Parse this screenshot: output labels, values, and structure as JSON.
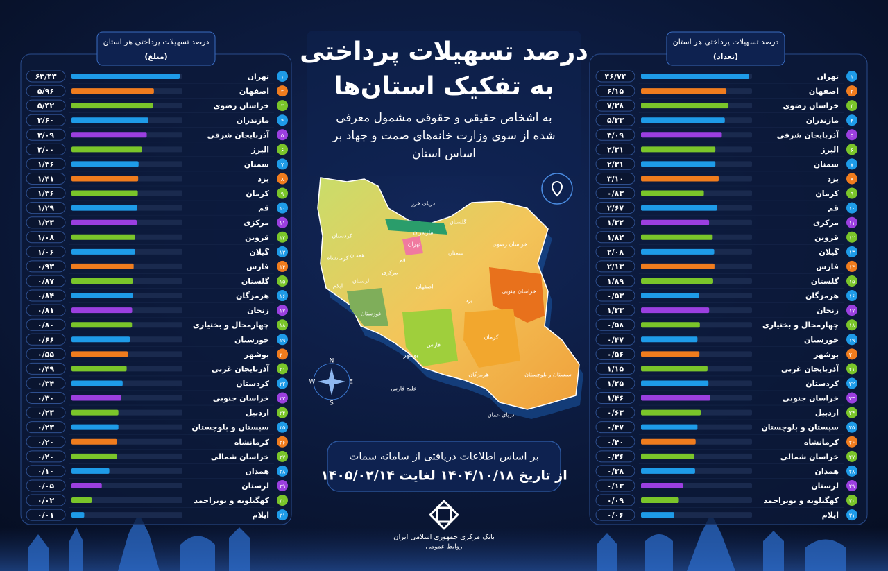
{
  "header": {
    "title_lines": [
      "درصد تسهیلات پرداختی",
      "به تفکیک استان‌ها"
    ],
    "subtitle_lines": [
      "به اشخاص حقیقی و حقوقی مشمول معرفی",
      "شده از سوی وزارت خانه‌های صمت و جهاد بر",
      "اساس استان"
    ]
  },
  "source": {
    "lines": [
      "بر اساس اطلاعات دریافتی از سامانه سمات",
      "از تاریخ ۱۴۰۴/۱۰/۱۸ لغایت ۱۴۰۵/۰۲/۱۴"
    ]
  },
  "logo": {
    "lines": [
      "بانک مرکزی جمهوری اسلامی ایران",
      "روابط عمومی"
    ]
  },
  "map": {
    "labels": [
      "دریای خزر",
      "خلیج فارس",
      "دریای عمان",
      "تهران",
      "اصفهان",
      "یزد",
      "کرمان",
      "فارس",
      "خوزستان",
      "سمنان",
      "خراسان رضوی",
      "خراسان جنوبی",
      "سیستان و بلوچستان",
      "هرمزگان",
      "گلستان",
      "مازندران",
      "لرستان",
      "همدان",
      "کردستان",
      "کرمانشاه",
      "ایلام",
      "قم",
      "مرکزی",
      "بوشهر"
    ],
    "compass": [
      "N",
      "S",
      "E",
      "W"
    ]
  },
  "chart_data": [
    {
      "type": "bar",
      "orientation": "horizontal",
      "title": "درصد تسهیلات پرداختی هر استان",
      "subtitle": "(مبلغ)",
      "categories": [
        "تهران",
        "اصفهان",
        "خراسان رضوی",
        "مازندران",
        "آذربایجان شرقی",
        "البرز",
        "سمنان",
        "یزد",
        "کرمان",
        "قم",
        "مرکزی",
        "قزوین",
        "گیلان",
        "فارس",
        "گلستان",
        "هرمزگان",
        "زنجان",
        "چهارمحال و بختیاری",
        "خوزستان",
        "بوشهر",
        "آذربایجان غربی",
        "کردستان",
        "خراسان جنوبی",
        "اردبیل",
        "سیستان و بلوچستان",
        "کرمانشاه",
        "خراسان شمالی",
        "همدان",
        "لرستان",
        "کهگیلویه و بویراحمد",
        "ایلام"
      ],
      "ranks": [
        "۱",
        "۲",
        "۳",
        "۴",
        "۵",
        "۶",
        "۷",
        "۸",
        "۹",
        "۱۰",
        "۱۱",
        "۱۲",
        "۱۳",
        "۱۴",
        "۱۵",
        "۱۶",
        "۱۷",
        "۱۸",
        "۱۹",
        "۲۰",
        "۲۱",
        "۲۲",
        "۲۳",
        "۲۴",
        "۲۵",
        "۲۶",
        "۲۷",
        "۲۸",
        "۲۹",
        "۳۰",
        "۳۱"
      ],
      "values": [
        63.43,
        5.96,
        5.42,
        3.6,
        3.09,
        2.0,
        1.46,
        1.41,
        1.36,
        1.29,
        1.23,
        1.08,
        1.06,
        0.93,
        0.87,
        0.84,
        0.81,
        0.8,
        0.66,
        0.55,
        0.49,
        0.34,
        0.3,
        0.23,
        0.23,
        0.2,
        0.2,
        0.1,
        0.05,
        0.02,
        0.01
      ],
      "value_labels": [
        "۶۳/۴۳",
        "۵/۹۶",
        "۵/۴۲",
        "۳/۶۰",
        "۳/۰۹",
        "۲/۰۰",
        "۱/۴۶",
        "۱/۴۱",
        "۱/۳۶",
        "۱/۲۹",
        "۱/۲۳",
        "۱/۰۸",
        "۱/۰۶",
        "۰/۹۳",
        "۰/۸۷",
        "۰/۸۴",
        "۰/۸۱",
        "۰/۸۰",
        "۰/۶۶",
        "۰/۵۵",
        "۰/۴۹",
        "۰/۳۴",
        "۰/۳۰",
        "۰/۲۳",
        "۰/۲۳",
        "۰/۲۰",
        "۰/۲۰",
        "۰/۱۰",
        "۰/۰۵",
        "۰/۰۲",
        "۰/۰۱"
      ],
      "colors": [
        "#1e9be8",
        "#f07c1e",
        "#7ac52a",
        "#1e9be8",
        "#9b3fe0",
        "#7ac52a",
        "#1e9be8",
        "#f07c1e",
        "#7ac52a",
        "#1e9be8",
        "#9b3fe0",
        "#7ac52a",
        "#1e9be8",
        "#f07c1e",
        "#7ac52a",
        "#1e9be8",
        "#9b3fe0",
        "#7ac52a",
        "#1e9be8",
        "#f07c1e",
        "#7ac52a",
        "#1e9be8",
        "#9b3fe0",
        "#7ac52a",
        "#1e9be8",
        "#f07c1e",
        "#7ac52a",
        "#1e9be8",
        "#9b3fe0",
        "#7ac52a",
        "#1e9be8"
      ]
    },
    {
      "type": "bar",
      "orientation": "horizontal",
      "title": "درصد تسهیلات پرداختی هر استان",
      "subtitle": "(تعداد)",
      "categories": [
        "تهران",
        "اصفهان",
        "خراسان رضوی",
        "مازندران",
        "آذربایجان شرقی",
        "البرز",
        "سمنان",
        "یزد",
        "کرمان",
        "قم",
        "مرکزی",
        "قزوین",
        "گیلان",
        "فارس",
        "گلستان",
        "هرمزگان",
        "زنجان",
        "چهارمحال و بختیاری",
        "خوزستان",
        "بوشهر",
        "آذربایجان غربی",
        "کردستان",
        "خراسان جنوبی",
        "اردبیل",
        "سیستان و بلوچستان",
        "کرمانشاه",
        "خراسان شمالی",
        "همدان",
        "لرستان",
        "کهگیلویه و بویراحمد",
        "ایلام"
      ],
      "ranks": [
        "۱",
        "۲",
        "۳",
        "۴",
        "۵",
        "۶",
        "۷",
        "۸",
        "۹",
        "۱۰",
        "۱۱",
        "۱۲",
        "۱۳",
        "۱۴",
        "۱۵",
        "۱۶",
        "۱۷",
        "۱۸",
        "۱۹",
        "۲۰",
        "۲۱",
        "۲۲",
        "۲۳",
        "۲۴",
        "۲۵",
        "۲۶",
        "۲۷",
        "۲۸",
        "۲۹",
        "۳۰",
        "۳۱"
      ],
      "values": [
        46.74,
        6.15,
        7.38,
        5.33,
        4.09,
        2.31,
        2.31,
        3.1,
        0.83,
        2.67,
        1.32,
        1.82,
        2.08,
        2.13,
        1.89,
        0.53,
        1.33,
        0.58,
        0.47,
        0.56,
        1.15,
        1.25,
        1.46,
        0.63,
        0.47,
        0.4,
        0.36,
        0.38,
        0.13,
        0.09,
        0.06
      ],
      "value_labels": [
        "۴۶/۷۴",
        "۶/۱۵",
        "۷/۳۸",
        "۵/۳۳",
        "۴/۰۹",
        "۲/۳۱",
        "۲/۳۱",
        "۳/۱۰",
        "۰/۸۳",
        "۲/۶۷",
        "۱/۳۲",
        "۱/۸۲",
        "۲/۰۸",
        "۲/۱۳",
        "۱/۸۹",
        "۰/۵۳",
        "۱/۳۳",
        "۰/۵۸",
        "۰/۴۷",
        "۰/۵۶",
        "۱/۱۵",
        "۱/۲۵",
        "۱/۴۶",
        "۰/۶۳",
        "۰/۴۷",
        "۰/۴۰",
        "۰/۳۶",
        "۰/۳۸",
        "۰/۱۳",
        "۰/۰۹",
        "۰/۰۶"
      ],
      "colors": [
        "#1e9be8",
        "#f07c1e",
        "#7ac52a",
        "#1e9be8",
        "#9b3fe0",
        "#7ac52a",
        "#1e9be8",
        "#f07c1e",
        "#7ac52a",
        "#1e9be8",
        "#9b3fe0",
        "#7ac52a",
        "#1e9be8",
        "#f07c1e",
        "#7ac52a",
        "#1e9be8",
        "#9b3fe0",
        "#7ac52a",
        "#1e9be8",
        "#f07c1e",
        "#7ac52a",
        "#1e9be8",
        "#9b3fe0",
        "#7ac52a",
        "#1e9be8",
        "#f07c1e",
        "#7ac52a",
        "#1e9be8",
        "#9b3fe0",
        "#7ac52a",
        "#1e9be8"
      ]
    }
  ]
}
